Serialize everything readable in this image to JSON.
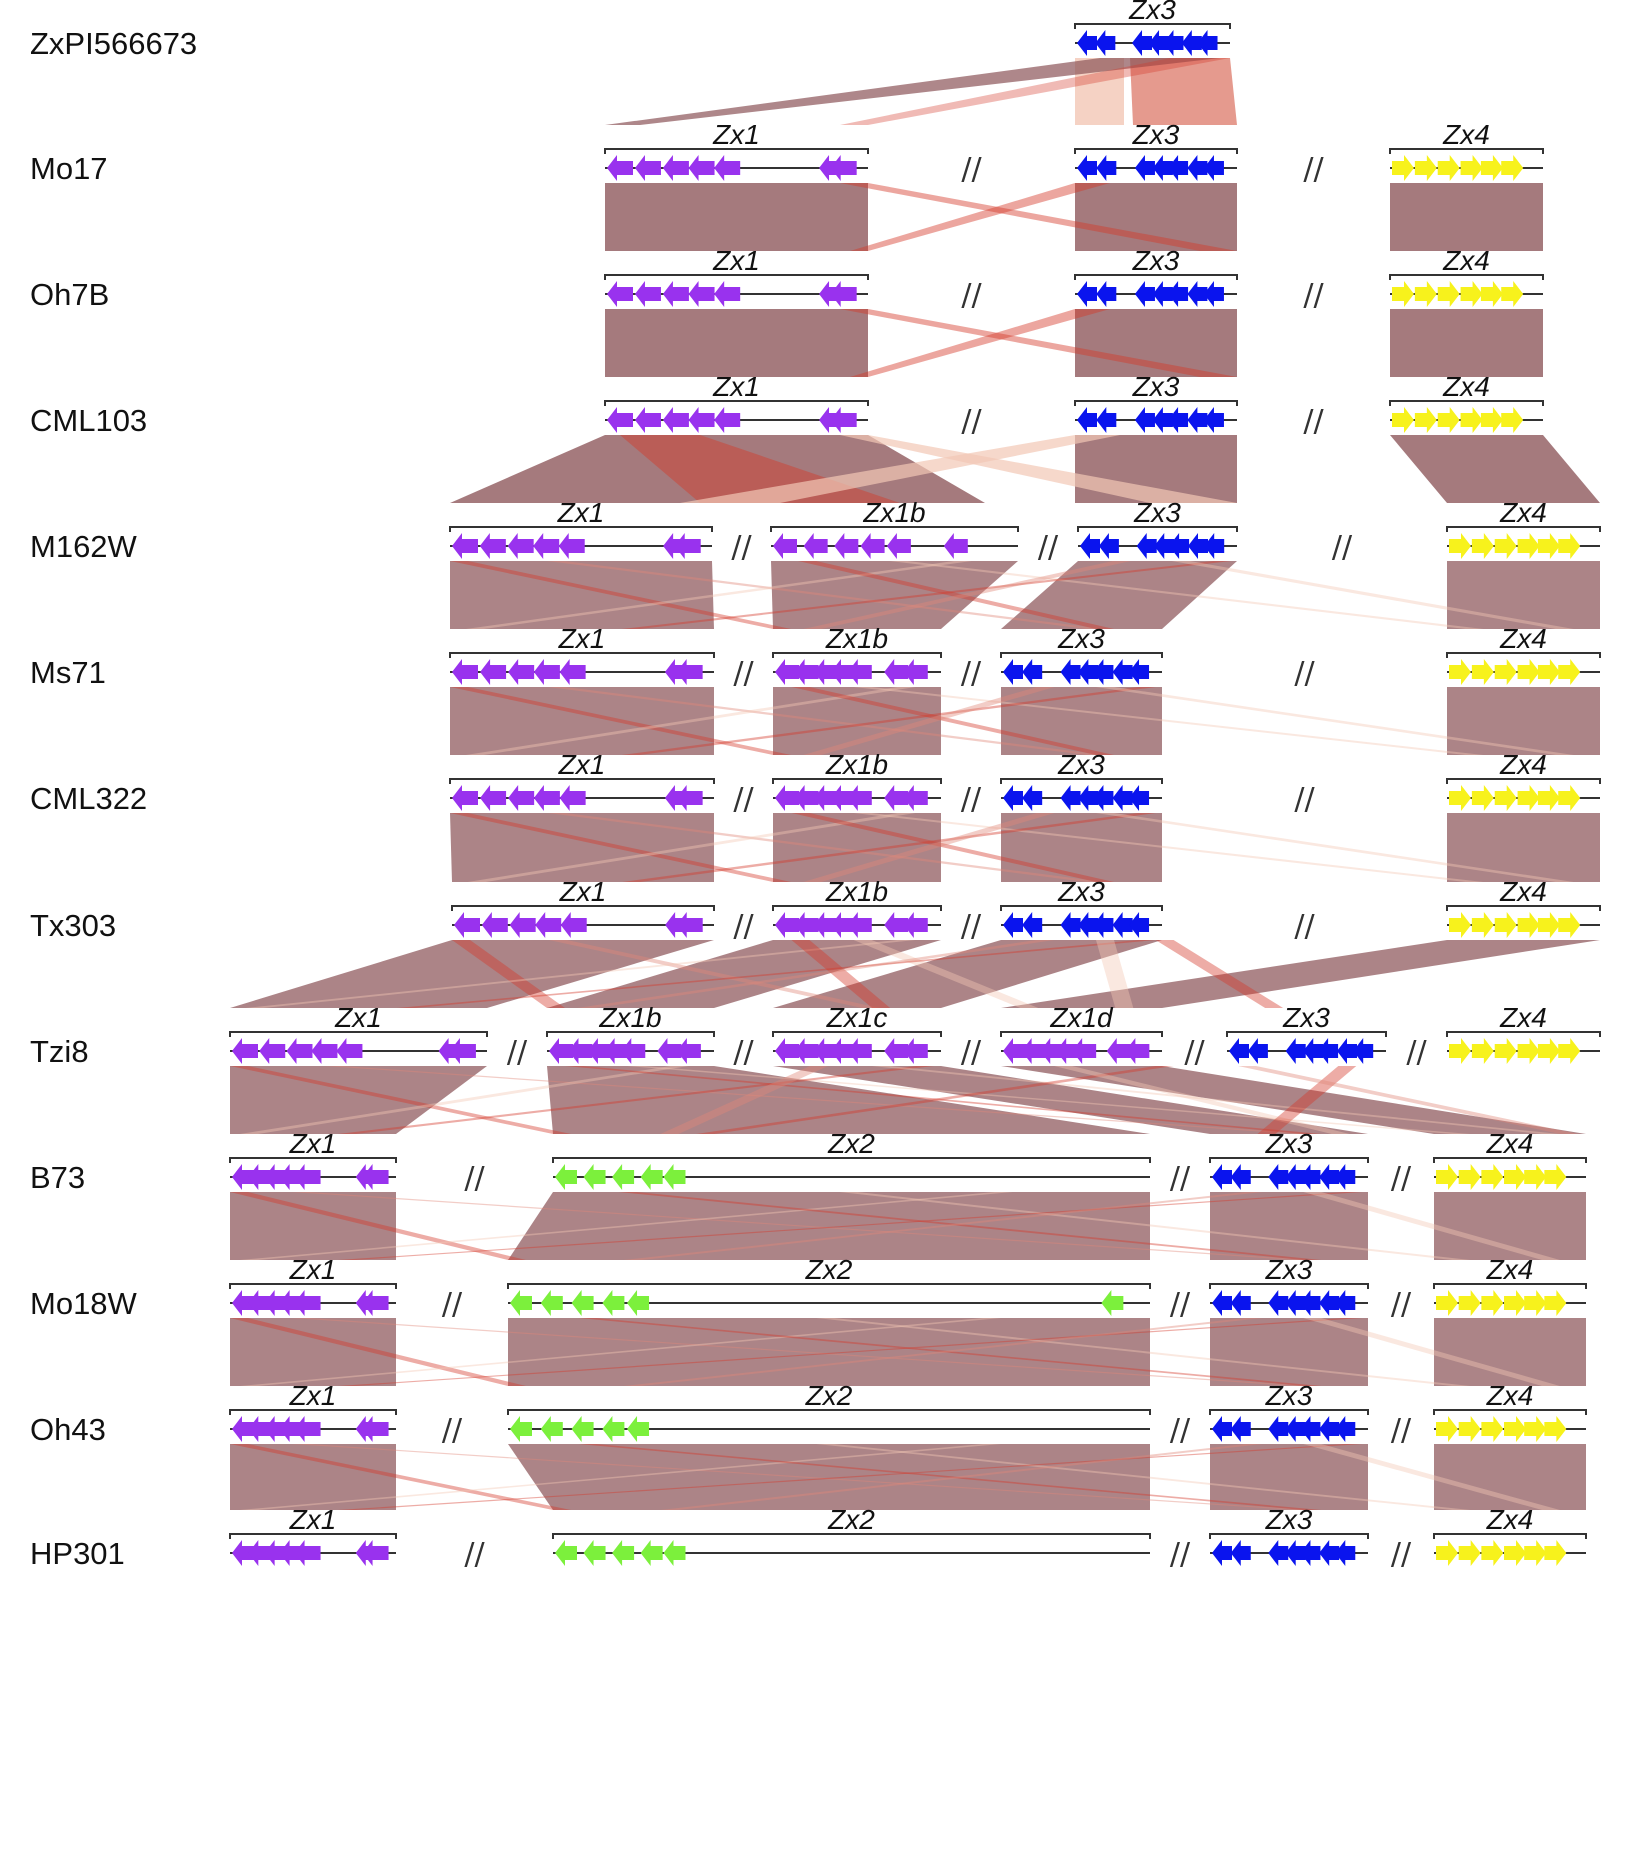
{
  "colors": {
    "Zx1": "#9932ee",
    "Zx1b": "#9932ee",
    "Zx1c": "#9932ee",
    "Zx1d": "#9932ee",
    "Zx2": "#7cf03c",
    "Zx3": "#0a14ee",
    "Zx4": "#f7f21c",
    "synteny_dark": "#8c5459",
    "synteny_light": "#e0887a",
    "synteny_red": "#d43a2a",
    "synteny_faint": "#f2c7b5"
  },
  "break_symbol": "//",
  "rows": [
    {
      "label": "ZxPI566673",
      "clusters": [
        {
          "name": "Zx3",
          "arrows": [
            1,
            1,
            1,
            1,
            1,
            1,
            1
          ]
        }
      ]
    },
    {
      "label": "Mo17",
      "clusters": [
        {
          "name": "Zx1",
          "arrows": [
            1,
            1,
            1,
            1,
            1,
            1,
            1
          ]
        },
        {
          "name": "Zx3",
          "arrows": [
            1,
            1,
            1,
            1,
            1,
            1,
            1
          ]
        },
        {
          "name": "Zx4",
          "arrows": [
            0,
            0,
            0,
            0,
            0,
            0
          ]
        }
      ]
    },
    {
      "label": "Oh7B",
      "clusters": [
        {
          "name": "Zx1",
          "arrows": [
            1,
            1,
            1,
            1,
            1,
            1,
            1
          ]
        },
        {
          "name": "Zx3",
          "arrows": [
            1,
            1,
            1,
            1,
            1,
            1,
            1
          ]
        },
        {
          "name": "Zx4",
          "arrows": [
            0,
            0,
            0,
            0,
            0,
            0
          ]
        }
      ]
    },
    {
      "label": "CML103",
      "clusters": [
        {
          "name": "Zx1",
          "arrows": [
            1,
            1,
            1,
            1,
            1,
            1,
            1
          ]
        },
        {
          "name": "Zx3",
          "arrows": [
            1,
            1,
            1,
            1,
            1,
            1,
            1
          ]
        },
        {
          "name": "Zx4",
          "arrows": [
            0,
            0,
            0,
            0,
            0,
            0
          ]
        }
      ]
    },
    {
      "label": "M162W",
      "clusters": [
        {
          "name": "Zx1",
          "arrows": [
            1,
            1,
            1,
            1,
            1,
            1,
            1
          ]
        },
        {
          "name": "Zx1b",
          "arrows": [
            1,
            1,
            1,
            1,
            1,
            1
          ]
        },
        {
          "name": "Zx3",
          "arrows": [
            1,
            1,
            1,
            1,
            1,
            1,
            1
          ]
        },
        {
          "name": "Zx4",
          "arrows": [
            0,
            0,
            0,
            0,
            0,
            0
          ]
        }
      ]
    },
    {
      "label": "Ms71",
      "clusters": [
        {
          "name": "Zx1",
          "arrows": [
            1,
            1,
            1,
            1,
            1,
            1,
            1
          ]
        },
        {
          "name": "Zx1b",
          "arrows": [
            1,
            1,
            1,
            1,
            1,
            1,
            1
          ]
        },
        {
          "name": "Zx3",
          "arrows": [
            1,
            1,
            1,
            1,
            1,
            1,
            1
          ]
        },
        {
          "name": "Zx4",
          "arrows": [
            0,
            0,
            0,
            0,
            0,
            0
          ]
        }
      ]
    },
    {
      "label": "CML322",
      "clusters": [
        {
          "name": "Zx1",
          "arrows": [
            1,
            1,
            1,
            1,
            1,
            1,
            1
          ]
        },
        {
          "name": "Zx1b",
          "arrows": [
            1,
            1,
            1,
            1,
            1,
            1,
            1
          ]
        },
        {
          "name": "Zx3",
          "arrows": [
            1,
            1,
            1,
            1,
            1,
            1,
            1
          ]
        },
        {
          "name": "Zx4",
          "arrows": [
            0,
            0,
            0,
            0,
            0,
            0
          ]
        }
      ]
    },
    {
      "label": "Tx303",
      "clusters": [
        {
          "name": "Zx1",
          "arrows": [
            1,
            1,
            1,
            1,
            1,
            1,
            1
          ]
        },
        {
          "name": "Zx1b",
          "arrows": [
            1,
            1,
            1,
            1,
            1,
            1,
            1
          ]
        },
        {
          "name": "Zx3",
          "arrows": [
            1,
            1,
            1,
            1,
            1,
            1,
            1
          ]
        },
        {
          "name": "Zx4",
          "arrows": [
            0,
            0,
            0,
            0,
            0,
            0
          ]
        }
      ]
    },
    {
      "label": "Tzi8",
      "clusters": [
        {
          "name": "Zx1",
          "arrows": [
            1,
            1,
            1,
            1,
            1,
            1,
            1
          ]
        },
        {
          "name": "Zx1b",
          "arrows": [
            1,
            1,
            1,
            1,
            1,
            1,
            1
          ]
        },
        {
          "name": "Zx1c",
          "arrows": [
            1,
            1,
            1,
            1,
            1,
            1,
            1
          ]
        },
        {
          "name": "Zx1d",
          "arrows": [
            1,
            1,
            1,
            1,
            1,
            1,
            1
          ]
        },
        {
          "name": "Zx3",
          "arrows": [
            1,
            1,
            1,
            1,
            1,
            1,
            1
          ]
        },
        {
          "name": "Zx4",
          "arrows": [
            0,
            0,
            0,
            0,
            0,
            0
          ]
        }
      ]
    },
    {
      "label": "B73",
      "clusters": [
        {
          "name": "Zx1",
          "arrows": [
            1,
            1,
            1,
            1,
            1,
            1,
            1
          ]
        },
        {
          "name": "Zx2",
          "arrows": [
            1,
            1,
            1,
            1,
            1
          ]
        },
        {
          "name": "Zx3",
          "arrows": [
            1,
            1,
            1,
            1,
            1,
            1,
            1
          ]
        },
        {
          "name": "Zx4",
          "arrows": [
            0,
            0,
            0,
            0,
            0,
            0
          ]
        }
      ]
    },
    {
      "label": "Mo18W",
      "clusters": [
        {
          "name": "Zx1",
          "arrows": [
            1,
            1,
            1,
            1,
            1,
            1,
            1
          ]
        },
        {
          "name": "Zx2",
          "arrows": [
            1,
            1,
            1,
            1,
            1,
            1
          ]
        },
        {
          "name": "Zx3",
          "arrows": [
            1,
            1,
            1,
            1,
            1,
            1,
            1
          ]
        },
        {
          "name": "Zx4",
          "arrows": [
            0,
            0,
            0,
            0,
            0,
            0
          ]
        }
      ]
    },
    {
      "label": "Oh43",
      "clusters": [
        {
          "name": "Zx1",
          "arrows": [
            1,
            1,
            1,
            1,
            1,
            1,
            1
          ]
        },
        {
          "name": "Zx2",
          "arrows": [
            1,
            1,
            1,
            1,
            1
          ]
        },
        {
          "name": "Zx3",
          "arrows": [
            1,
            1,
            1,
            1,
            1,
            1,
            1
          ]
        },
        {
          "name": "Zx4",
          "arrows": [
            0,
            0,
            0,
            0,
            0,
            0
          ]
        }
      ]
    },
    {
      "label": "HP301",
      "clusters": [
        {
          "name": "Zx1",
          "arrows": [
            1,
            1,
            1,
            1,
            1,
            1,
            1
          ]
        },
        {
          "name": "Zx2",
          "arrows": [
            1,
            1,
            1,
            1,
            1
          ]
        },
        {
          "name": "Zx3",
          "arrows": [
            1,
            1,
            1,
            1,
            1,
            1,
            1
          ]
        },
        {
          "name": "Zx4",
          "arrows": [
            0,
            0,
            0,
            0,
            0,
            0
          ]
        }
      ]
    }
  ]
}
